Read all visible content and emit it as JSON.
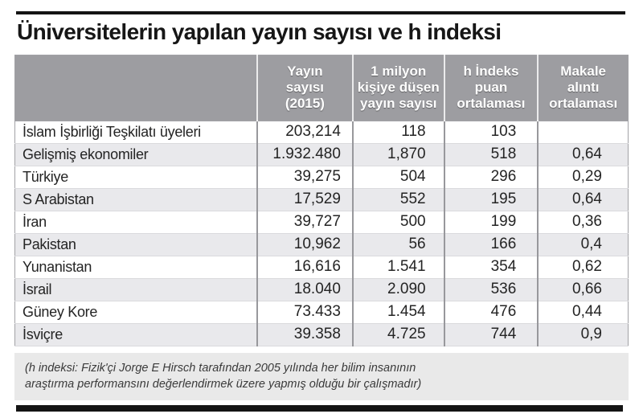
{
  "page": {
    "title": "Üniversitelerin yapılan yayın sayısı ve h indeksi"
  },
  "chart_data": {
    "type": "table",
    "title": "Üniversitelerin yapılan yayın sayısı ve h indeksi",
    "columns": [
      {
        "id": "name",
        "label": ""
      },
      {
        "id": "yayin_sayisi_2015",
        "label": "Yayın\nsayısı\n(2015)",
        "label_plain": "Yayın sayısı (2015)"
      },
      {
        "id": "per_million",
        "label": "1 milyon\nkişiye düşen\nyayın sayısı",
        "label_plain": "1 milyon kişiye düşen yayın sayısı"
      },
      {
        "id": "h_index",
        "label": "h İndeks\npuan\nortalaması",
        "label_plain": "h İndeks puan ortalaması"
      },
      {
        "id": "citation_avg",
        "label": "Makale\nalıntı\nortalaması",
        "label_plain": "Makale alıntı ortalaması"
      }
    ],
    "rows": [
      {
        "name": "İslam İşbirliği Teşkilatı üyeleri",
        "yayin_sayisi_2015": "203,214",
        "per_million": "118",
        "h_index": "103",
        "citation_avg": ""
      },
      {
        "name": "Gelişmiş ekonomiler",
        "yayin_sayisi_2015": "1.932.480",
        "per_million": "1,870",
        "h_index": "518",
        "citation_avg": "0,64"
      },
      {
        "name": "Türkiye",
        "yayin_sayisi_2015": "39,275",
        "per_million": "504",
        "h_index": "296",
        "citation_avg": "0,29"
      },
      {
        "name": "S Arabistan",
        "yayin_sayisi_2015": "17,529",
        "per_million": "552",
        "h_index": "195",
        "citation_avg": "0,64"
      },
      {
        "name": "İran",
        "yayin_sayisi_2015": "39,727",
        "per_million": "500",
        "h_index": "199",
        "citation_avg": "0,36"
      },
      {
        "name": "Pakistan",
        "yayin_sayisi_2015": "10,962",
        "per_million": "56",
        "h_index": "166",
        "citation_avg": "0,4"
      },
      {
        "name": "Yunanistan",
        "yayin_sayisi_2015": "16,616",
        "per_million": "1.541",
        "h_index": "354",
        "citation_avg": "0,62"
      },
      {
        "name": "İsrail",
        "yayin_sayisi_2015": "18.040",
        "per_million": "2.090",
        "h_index": "536",
        "citation_avg": "0,66"
      },
      {
        "name": "Güney Kore",
        "yayin_sayisi_2015": "73.433",
        "per_million": "1.454",
        "h_index": "476",
        "citation_avg": "0,44"
      },
      {
        "name": "İsviçre",
        "yayin_sayisi_2015": "39.358",
        "per_million": "4.725",
        "h_index": "744",
        "citation_avg": "0,9"
      }
    ]
  },
  "footnote": {
    "line1": "(h indeksi: Fizik'çi Jorge E Hirsch tarafından 2005 yılında her bilim insanının",
    "line2": "araştırma performansını değerlendirmek üzere yapmış olduğu bir çalışmadır)"
  },
  "colors": {
    "rule_black": "#141414",
    "header_bg": "#9d9da1",
    "header_text": "#ffffff",
    "row_alt_bg": "#e9e9ec",
    "grid_line": "#98989c",
    "footnote_bg": "#e9e9e9",
    "body_text": "#242424"
  }
}
